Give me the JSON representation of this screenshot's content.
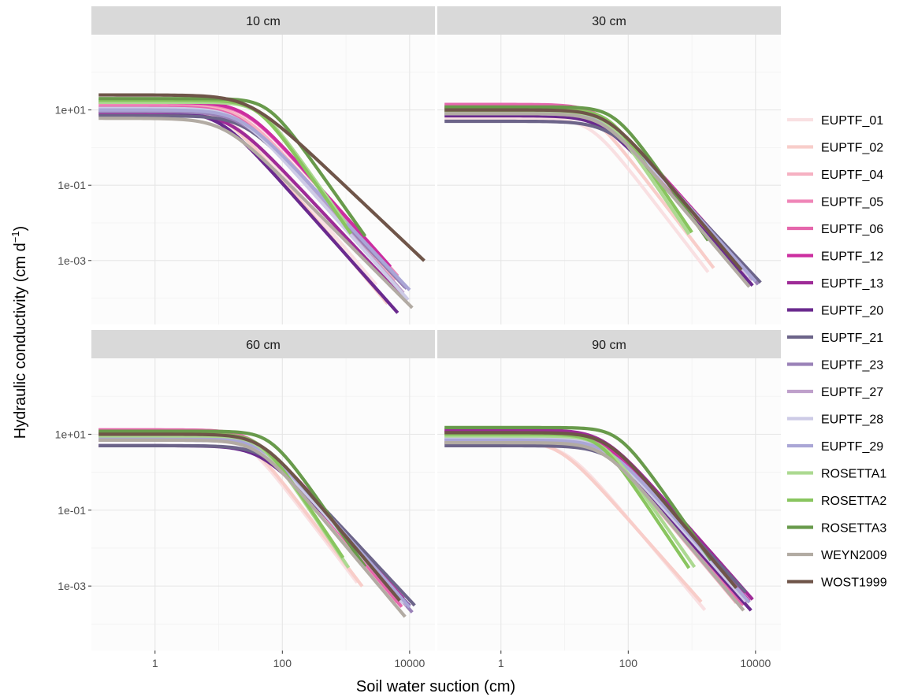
{
  "chart_data": {
    "type": "line",
    "xlabel": "Soil water suction (cm)",
    "ylabel": "Hydraulic conductivity (cm d",
    "ylabel_sup": "−1",
    "ylabel_close": ")",
    "x_scale": "log10",
    "y_scale": "log10",
    "xlim": [
      0.1,
      25000
    ],
    "ylim": [
      2e-05,
      1000
    ],
    "x_ticks": [
      {
        "value": 1,
        "label": "1"
      },
      {
        "value": 100,
        "label": "100"
      },
      {
        "value": 10000,
        "label": "10000"
      }
    ],
    "y_ticks": [
      {
        "value": 10,
        "label": "1e+01"
      },
      {
        "value": 0.1,
        "label": "1e-01"
      },
      {
        "value": 0.001,
        "label": "1e-03"
      }
    ],
    "grid": true,
    "legend_position": "right",
    "series_styles": [
      {
        "name": "EUPTF_01",
        "color": "#f9e0e2"
      },
      {
        "name": "EUPTF_02",
        "color": "#f8cdc9"
      },
      {
        "name": "EUPTF_04",
        "color": "#f6b1c2"
      },
      {
        "name": "EUPTF_05",
        "color": "#ef85b7"
      },
      {
        "name": "EUPTF_06",
        "color": "#e567ac"
      },
      {
        "name": "EUPTF_12",
        "color": "#cc2ea0"
      },
      {
        "name": "EUPTF_13",
        "color": "#9e2b97"
      },
      {
        "name": "EUPTF_20",
        "color": "#6a2a8e"
      },
      {
        "name": "EUPTF_21",
        "color": "#6c6489"
      },
      {
        "name": "EUPTF_23",
        "color": "#9a82b8"
      },
      {
        "name": "EUPTF_27",
        "color": "#bfa0cb"
      },
      {
        "name": "EUPTF_28",
        "color": "#cdcbe6"
      },
      {
        "name": "EUPTF_29",
        "color": "#aaa6d6"
      },
      {
        "name": "ROSETTA1",
        "color": "#acd991"
      },
      {
        "name": "ROSETTA2",
        "color": "#89c55f"
      },
      {
        "name": "ROSETTA3",
        "color": "#689a4b"
      },
      {
        "name": "WEYN2009",
        "color": "#b2aba3"
      },
      {
        "name": "WOST1999",
        "color": "#6f5549"
      }
    ],
    "panels": [
      {
        "title": "10 cm",
        "series": [
          {
            "name": "EUPTF_01",
            "ks": 9,
            "h0": 15,
            "m": 2.0,
            "xmax": 3000
          },
          {
            "name": "EUPTF_02",
            "ks": 10,
            "h0": 12,
            "m": 2.0,
            "xmax": 4500
          },
          {
            "name": "EUPTF_04",
            "ks": 13,
            "h0": 22,
            "m": 1.9,
            "xmax": 6000
          },
          {
            "name": "EUPTF_05",
            "ks": 15,
            "h0": 25,
            "m": 1.9,
            "xmax": 6500
          },
          {
            "name": "EUPTF_06",
            "ks": 12,
            "h0": 20,
            "m": 1.9,
            "xmax": 7000
          },
          {
            "name": "EUPTF_12",
            "ks": 16,
            "h0": 25,
            "m": 1.9,
            "xmax": 5000
          },
          {
            "name": "EUPTF_13",
            "ks": 8,
            "h0": 15,
            "m": 1.8,
            "xmax": 8000
          },
          {
            "name": "EUPTF_20",
            "ks": 9,
            "h0": 10,
            "m": 1.9,
            "xmax": 6500
          },
          {
            "name": "EUPTF_21",
            "ks": 7,
            "h0": 25,
            "m": 1.8,
            "xmax": 8500
          },
          {
            "name": "EUPTF_23",
            "ks": 9,
            "h0": 22,
            "m": 1.8,
            "xmax": 9000
          },
          {
            "name": "EUPTF_27",
            "ks": 10,
            "h0": 22,
            "m": 1.9,
            "xmax": 8000
          },
          {
            "name": "EUPTF_28",
            "ks": 11,
            "h0": 20,
            "m": 1.9,
            "xmax": 9500
          },
          {
            "name": "EUPTF_29",
            "ks": 10,
            "h0": 22,
            "m": 1.8,
            "xmax": 10000
          },
          {
            "name": "ROSETTA1",
            "ks": 16,
            "h0": 45,
            "m": 2.4,
            "xmax": 1000
          },
          {
            "name": "ROSETTA2",
            "ks": 18,
            "h0": 40,
            "m": 2.4,
            "xmax": 1200
          },
          {
            "name": "ROSETTA3",
            "ks": 20,
            "h0": 60,
            "m": 2.4,
            "xmax": 2000
          },
          {
            "name": "WEYN2009",
            "ks": 6,
            "h0": 12,
            "m": 1.7,
            "xmax": 11000
          },
          {
            "name": "WOST1999",
            "ks": 25,
            "h0": 30,
            "m": 1.6,
            "xmax": 17000
          }
        ]
      },
      {
        "title": "30 cm",
        "series": [
          {
            "name": "EUPTF_01",
            "ks": 6,
            "h0": 25,
            "m": 2.2,
            "xmax": 1800
          },
          {
            "name": "EUPTF_02",
            "ks": 12,
            "h0": 25,
            "m": 2.2,
            "xmax": 2200
          },
          {
            "name": "EUPTF_04",
            "ks": 13,
            "h0": 32,
            "m": 2.0,
            "xmax": 6000
          },
          {
            "name": "EUPTF_05",
            "ks": 12,
            "h0": 35,
            "m": 2.0,
            "xmax": 6500
          },
          {
            "name": "EUPTF_06",
            "ks": 14,
            "h0": 35,
            "m": 2.0,
            "xmax": 7000
          },
          {
            "name": "EUPTF_12",
            "ks": 11,
            "h0": 40,
            "m": 1.9,
            "xmax": 7500
          },
          {
            "name": "EUPTF_13",
            "ks": 9,
            "h0": 40,
            "m": 1.9,
            "xmax": 8500
          },
          {
            "name": "EUPTF_20",
            "ks": 7,
            "h0": 38,
            "m": 1.9,
            "xmax": 9000
          },
          {
            "name": "EUPTF_21",
            "ks": 5,
            "h0": 50,
            "m": 1.8,
            "xmax": 12000
          },
          {
            "name": "EUPTF_23",
            "ks": 8,
            "h0": 45,
            "m": 1.9,
            "xmax": 11000
          },
          {
            "name": "EUPTF_27",
            "ks": 9,
            "h0": 40,
            "m": 1.9,
            "xmax": 9000
          },
          {
            "name": "EUPTF_28",
            "ks": 10,
            "h0": 38,
            "m": 1.9,
            "xmax": 8000
          },
          {
            "name": "EUPTF_29",
            "ks": 8,
            "h0": 45,
            "m": 1.9,
            "xmax": 10000
          },
          {
            "name": "ROSETTA1",
            "ks": 9,
            "h0": 45,
            "m": 2.5,
            "xmax": 900
          },
          {
            "name": "ROSETTA2",
            "ks": 10,
            "h0": 50,
            "m": 2.5,
            "xmax": 1000
          },
          {
            "name": "ROSETTA3",
            "ks": 12,
            "h0": 60,
            "m": 2.4,
            "xmax": 1800
          },
          {
            "name": "WEYN2009",
            "ks": 8,
            "h0": 40,
            "m": 2.0,
            "xmax": 8000
          },
          {
            "name": "WOST1999",
            "ks": 10,
            "h0": 45,
            "m": 2.0,
            "xmax": 6000
          }
        ]
      },
      {
        "title": "60 cm",
        "series": [
          {
            "name": "EUPTF_01",
            "ks": 10,
            "h0": 25,
            "m": 2.2,
            "xmax": 1500
          },
          {
            "name": "EUPTF_02",
            "ks": 12,
            "h0": 25,
            "m": 2.2,
            "xmax": 1800
          },
          {
            "name": "EUPTF_04",
            "ks": 12,
            "h0": 32,
            "m": 2.0,
            "xmax": 6000
          },
          {
            "name": "EUPTF_05",
            "ks": 13,
            "h0": 35,
            "m": 2.0,
            "xmax": 7000
          },
          {
            "name": "EUPTF_06",
            "ks": 13,
            "h0": 35,
            "m": 2.0,
            "xmax": 7500
          },
          {
            "name": "EUPTF_12",
            "ks": 11,
            "h0": 40,
            "m": 1.9,
            "xmax": 8000
          },
          {
            "name": "EUPTF_13",
            "ks": 10,
            "h0": 40,
            "m": 1.9,
            "xmax": 9000
          },
          {
            "name": "EUPTF_20",
            "ks": 5,
            "h0": 45,
            "m": 1.8,
            "xmax": 10000
          },
          {
            "name": "EUPTF_21",
            "ks": 5,
            "h0": 55,
            "m": 1.8,
            "xmax": 12000
          },
          {
            "name": "EUPTF_23",
            "ks": 7,
            "h0": 45,
            "m": 1.9,
            "xmax": 11000
          },
          {
            "name": "EUPTF_27",
            "ks": 9,
            "h0": 40,
            "m": 1.9,
            "xmax": 9000
          },
          {
            "name": "EUPTF_28",
            "ks": 9,
            "h0": 38,
            "m": 1.9,
            "xmax": 8000
          },
          {
            "name": "EUPTF_29",
            "ks": 8,
            "h0": 45,
            "m": 1.9,
            "xmax": 10000
          },
          {
            "name": "ROSETTA1",
            "ks": 9,
            "h0": 45,
            "m": 2.5,
            "xmax": 1100
          },
          {
            "name": "ROSETTA2",
            "ks": 10,
            "h0": 45,
            "m": 2.5,
            "xmax": 900
          },
          {
            "name": "ROSETTA3",
            "ks": 12,
            "h0": 65,
            "m": 2.4,
            "xmax": 2000
          },
          {
            "name": "WEYN2009",
            "ks": 7,
            "h0": 40,
            "m": 2.0,
            "xmax": 8500
          },
          {
            "name": "WOST1999",
            "ks": 10,
            "h0": 45,
            "m": 2.0,
            "xmax": 7000
          }
        ]
      },
      {
        "title": "90 cm",
        "series": [
          {
            "name": "EUPTF_01",
            "ks": 6,
            "h0": 10,
            "m": 2.0,
            "xmax": 1600
          },
          {
            "name": "EUPTF_02",
            "ks": 7,
            "h0": 8,
            "m": 1.9,
            "xmax": 1400
          },
          {
            "name": "EUPTF_04",
            "ks": 10,
            "h0": 30,
            "m": 2.0,
            "xmax": 5000
          },
          {
            "name": "EUPTF_05",
            "ks": 11,
            "h0": 32,
            "m": 2.0,
            "xmax": 6000
          },
          {
            "name": "EUPTF_06",
            "ks": 11,
            "h0": 35,
            "m": 2.0,
            "xmax": 6500
          },
          {
            "name": "EUPTF_12",
            "ks": 12,
            "h0": 35,
            "m": 1.9,
            "xmax": 8000
          },
          {
            "name": "EUPTF_13",
            "ks": 13,
            "h0": 40,
            "m": 1.9,
            "xmax": 9000
          },
          {
            "name": "EUPTF_20",
            "ks": 6,
            "h0": 40,
            "m": 1.9,
            "xmax": 8500
          },
          {
            "name": "EUPTF_21",
            "ks": 5,
            "h0": 50,
            "m": 1.8,
            "xmax": 7000
          },
          {
            "name": "EUPTF_23",
            "ks": 7,
            "h0": 45,
            "m": 1.9,
            "xmax": 8000
          },
          {
            "name": "EUPTF_27",
            "ks": 8,
            "h0": 40,
            "m": 1.9,
            "xmax": 7500
          },
          {
            "name": "EUPTF_28",
            "ks": 8,
            "h0": 38,
            "m": 1.9,
            "xmax": 7000
          },
          {
            "name": "EUPTF_29",
            "ks": 7,
            "h0": 45,
            "m": 1.9,
            "xmax": 8000
          },
          {
            "name": "ROSETTA1",
            "ks": 9,
            "h0": 40,
            "m": 2.4,
            "xmax": 1100
          },
          {
            "name": "ROSETTA2",
            "ks": 10,
            "h0": 35,
            "m": 2.5,
            "xmax": 900
          },
          {
            "name": "ROSETTA3",
            "ks": 15,
            "h0": 70,
            "m": 2.4,
            "xmax": 2000
          },
          {
            "name": "WEYN2009",
            "ks": 6,
            "h0": 40,
            "m": 2.0,
            "xmax": 6500
          },
          {
            "name": "WOST1999",
            "ks": 11,
            "h0": 45,
            "m": 2.0,
            "xmax": 5000
          }
        ]
      }
    ]
  }
}
